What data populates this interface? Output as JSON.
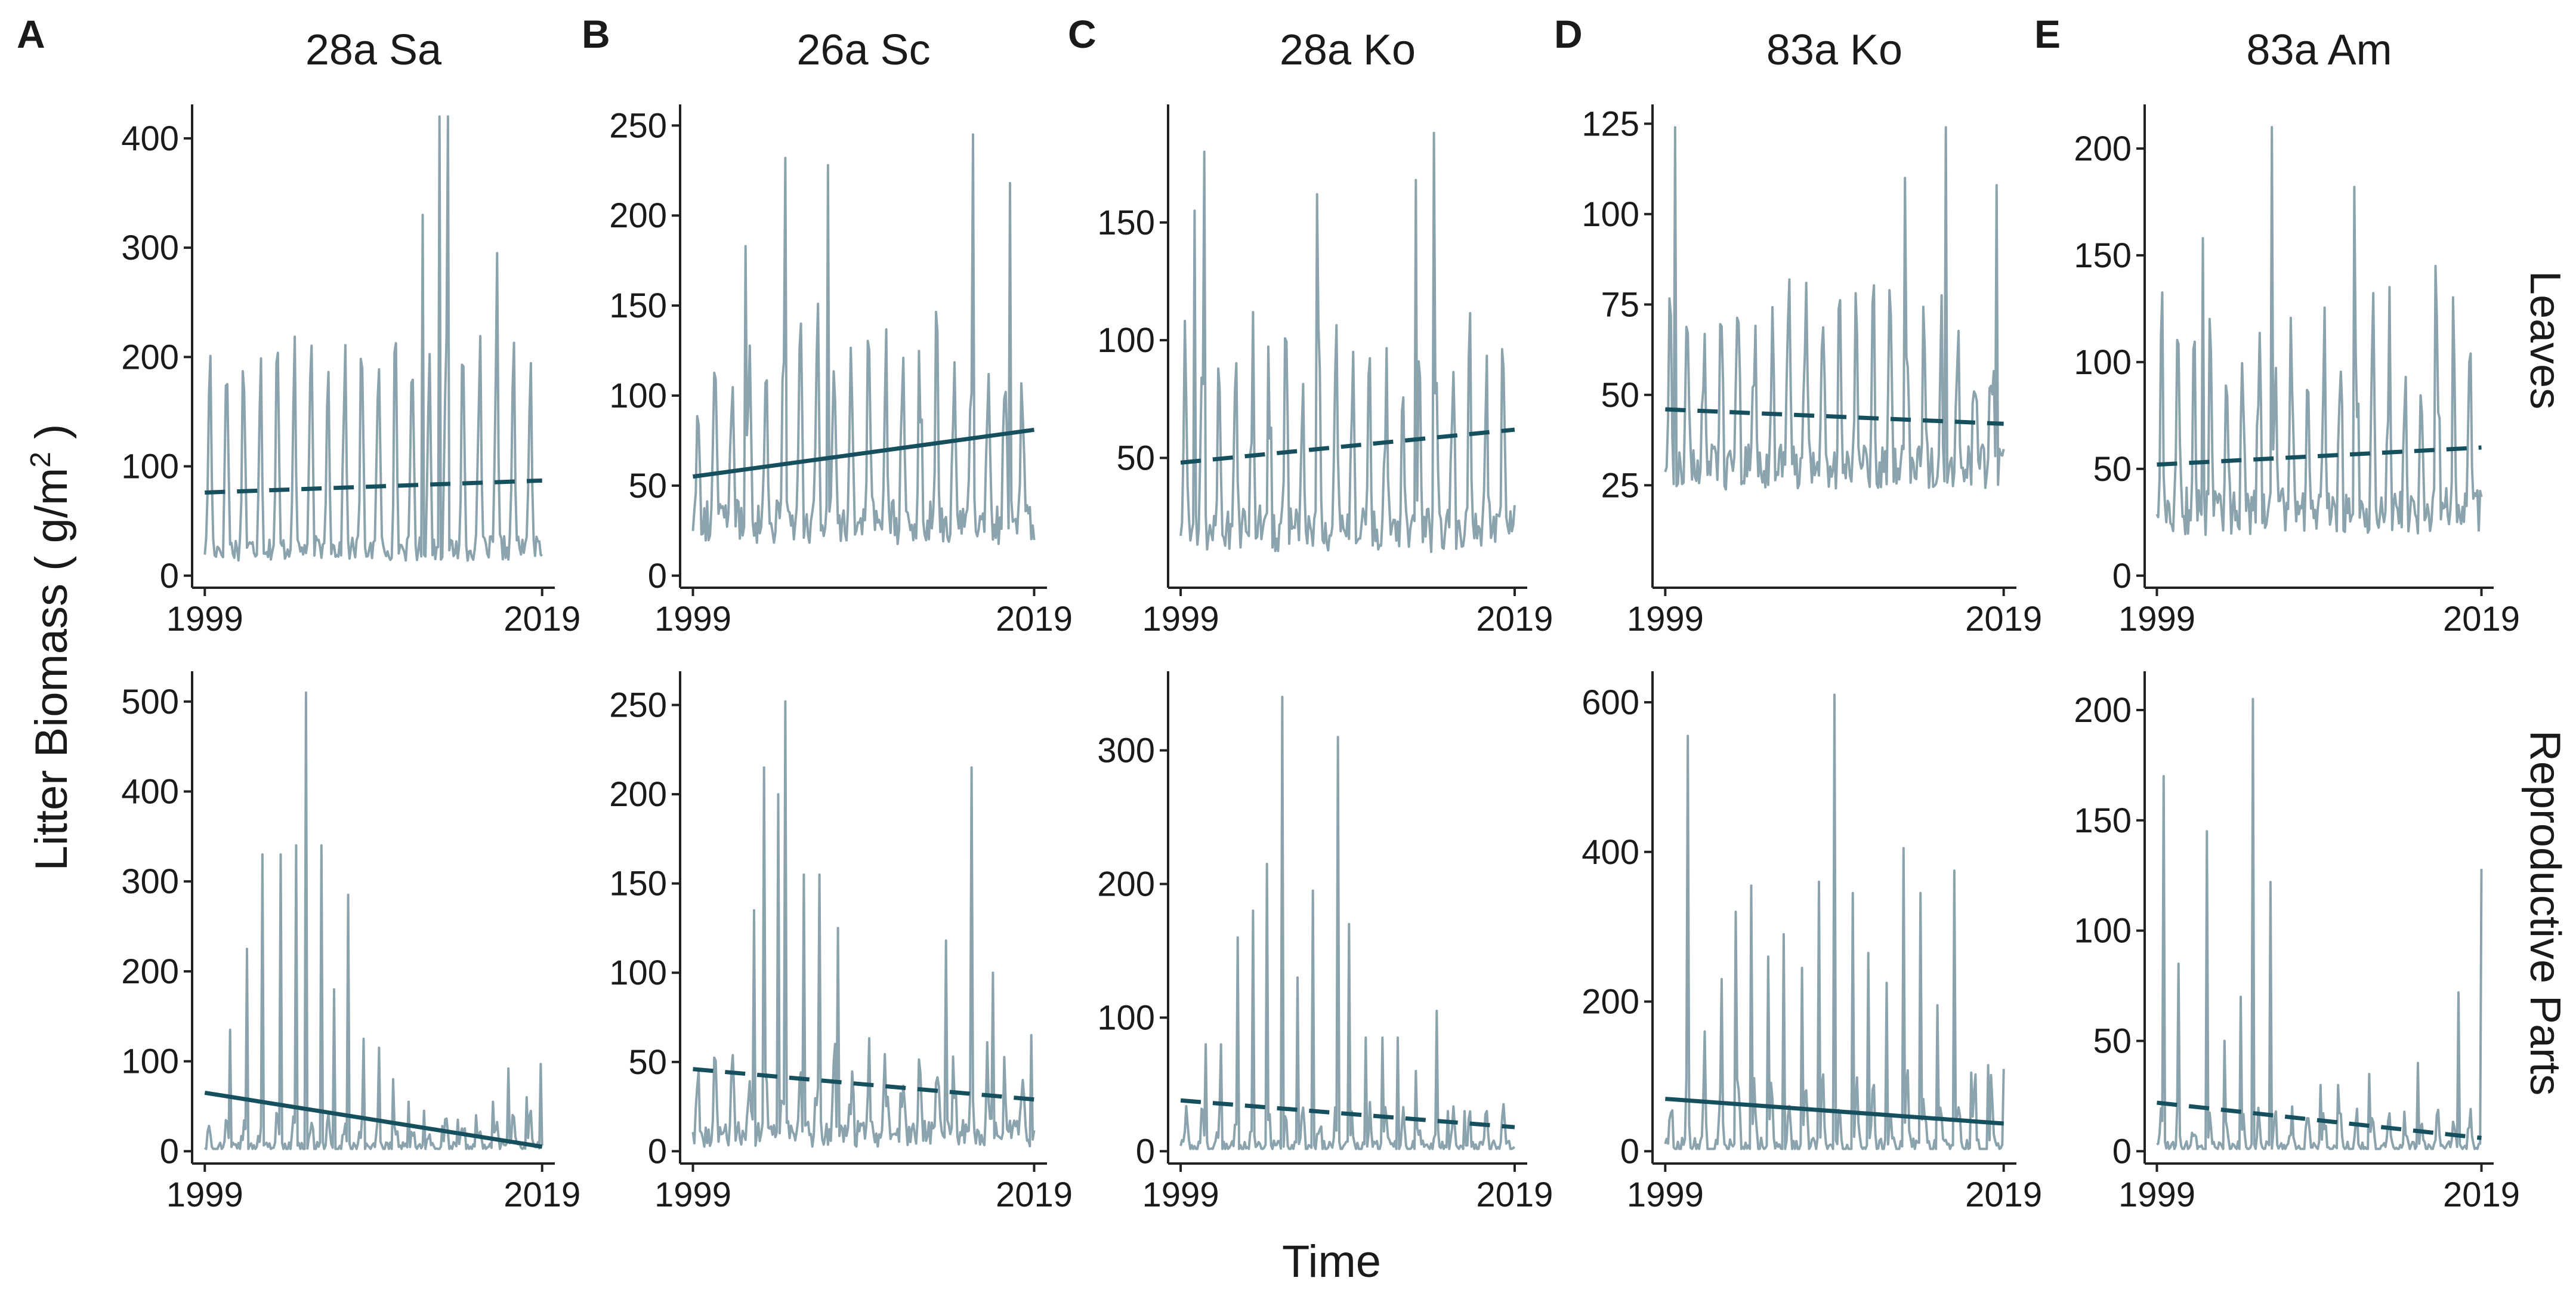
{
  "figure": {
    "ylabel_prefix": "Litter Biomass ( g/m",
    "ylabel_sup": "2",
    "ylabel_suffix": " )",
    "xlabel": "Time",
    "row_labels": [
      "Leaves",
      "Reproductive Parts"
    ],
    "colors": {
      "series": "#8aa3ad",
      "trend": "#16505f",
      "axis": "#222222"
    }
  },
  "chart_data": [
    {
      "type": "line",
      "panel": "A",
      "title": "28a Sa",
      "row": "Leaves",
      "xlim": [
        1999,
        2019
      ],
      "ylim": [
        0,
        420
      ],
      "yticks": [
        0,
        100,
        200,
        300,
        400
      ],
      "xticks": [
        1999,
        2019
      ],
      "base": 25,
      "peak": 200,
      "noise": 45,
      "spikes": [
        [
          2012.9,
          420
        ],
        [
          2013.4,
          420
        ],
        [
          2011.9,
          330
        ],
        [
          2016.3,
          295
        ]
      ],
      "trend": {
        "start": 76,
        "end": 87,
        "style": "dashed"
      }
    },
    {
      "type": "line",
      "panel": "B",
      "title": "26a Sc",
      "row": "Leaves",
      "xlim": [
        1999,
        2019
      ],
      "ylim": [
        0,
        255
      ],
      "yticks": [
        0,
        50,
        100,
        150,
        200,
        250
      ],
      "xticks": [
        1999,
        2019
      ],
      "base": 30,
      "peak": 125,
      "noise": 50,
      "spikes": [
        [
          2004.4,
          232
        ],
        [
          2015.4,
          245
        ],
        [
          2006.9,
          228
        ],
        [
          2017.6,
          218
        ],
        [
          2002.1,
          183
        ]
      ],
      "trend": {
        "start": 55,
        "end": 81,
        "style": "solid"
      }
    },
    {
      "type": "line",
      "panel": "C",
      "title": "28a Ko",
      "row": "Leaves",
      "xlim": [
        1999,
        2019
      ],
      "ylim": [
        0,
        195
      ],
      "yticks": [
        50,
        100,
        150
      ],
      "xticks": [
        1999,
        2019
      ],
      "base": 20,
      "peak": 90,
      "noise": 40,
      "spikes": [
        [
          2000.4,
          180
        ],
        [
          2014.2,
          188
        ],
        [
          2007.2,
          162
        ],
        [
          2013.1,
          168
        ],
        [
          1999.8,
          155
        ]
      ],
      "trend": {
        "start": 48,
        "end": 62,
        "style": "dashed"
      }
    },
    {
      "type": "line",
      "panel": "D",
      "title": "83a Ko",
      "row": "Leaves",
      "xlim": [
        1999,
        2019
      ],
      "ylim": [
        0,
        127
      ],
      "yticks": [
        25,
        50,
        75,
        100,
        125
      ],
      "xticks": [
        1999,
        2019
      ],
      "base": 30,
      "peak": 70,
      "noise": 25,
      "spikes": [
        [
          1999.6,
          124
        ],
        [
          2015.6,
          124
        ],
        [
          2018.6,
          108
        ],
        [
          2013.2,
          110
        ]
      ],
      "trend": {
        "start": 46,
        "end": 42,
        "style": "dashed"
      }
    },
    {
      "type": "line",
      "panel": "E",
      "title": "83a Am",
      "row": "Leaves",
      "xlim": [
        1999,
        2019
      ],
      "ylim": [
        0,
        215
      ],
      "yticks": [
        0,
        50,
        100,
        150,
        200
      ],
      "xticks": [
        1999,
        2019
      ],
      "base": 30,
      "peak": 110,
      "noise": 45,
      "spikes": [
        [
          2006.1,
          210
        ],
        [
          2011.2,
          182
        ],
        [
          2001.8,
          158
        ],
        [
          2016.2,
          145
        ]
      ],
      "trend": {
        "start": 52,
        "end": 60,
        "style": "dashed"
      }
    },
    {
      "type": "line",
      "panel": "A",
      "title": "28a Sa",
      "row": "Reproductive Parts",
      "xlim": [
        1999,
        2019
      ],
      "ylim": [
        0,
        520
      ],
      "yticks": [
        0,
        100,
        200,
        300,
        400,
        500
      ],
      "xticks": [
        1999,
        2019
      ],
      "base": 4,
      "peak": 30,
      "noise": 25,
      "spikes": [
        [
          2000.5,
          135
        ],
        [
          2001.5,
          225
        ],
        [
          2002.4,
          330
        ],
        [
          2003.5,
          330
        ],
        [
          2004.4,
          340
        ],
        [
          2005.0,
          510
        ],
        [
          2005.9,
          340
        ],
        [
          2006.7,
          180
        ],
        [
          2007.5,
          285
        ],
        [
          2008.4,
          125
        ],
        [
          2009.3,
          115
        ],
        [
          2010.2,
          80
        ],
        [
          2011.1,
          55
        ],
        [
          2012.0,
          45
        ],
        [
          2013.1,
          28
        ],
        [
          2014.0,
          35
        ],
        [
          2015.1,
          40
        ],
        [
          2016.1,
          55
        ],
        [
          2017.0,
          92
        ],
        [
          2018.1,
          60
        ],
        [
          2018.9,
          97
        ]
      ],
      "trend": {
        "start": 65,
        "end": 5,
        "style": "solid"
      }
    },
    {
      "type": "line",
      "panel": "B",
      "title": "26a Sc",
      "row": "Reproductive Parts",
      "xlim": [
        1999,
        2019
      ],
      "ylim": [
        0,
        262
      ],
      "yticks": [
        0,
        50,
        100,
        150,
        200,
        250
      ],
      "xticks": [
        1999,
        2019
      ],
      "base": 10,
      "peak": 45,
      "noise": 30,
      "spikes": [
        [
          2004.4,
          252
        ],
        [
          2003.2,
          215
        ],
        [
          2004.0,
          200
        ],
        [
          2002.6,
          135
        ],
        [
          2005.5,
          155
        ],
        [
          2006.4,
          155
        ],
        [
          2007.5,
          125
        ],
        [
          2015.3,
          215
        ],
        [
          2013.8,
          118
        ],
        [
          2016.6,
          100
        ],
        [
          2018.8,
          65
        ]
      ],
      "trend": {
        "start": 46,
        "end": 29,
        "style": "dashed"
      }
    },
    {
      "type": "line",
      "panel": "C",
      "title": "28a Ko",
      "row": "Reproductive Parts",
      "xlim": [
        1999,
        2019
      ],
      "ylim": [
        0,
        350
      ],
      "yticks": [
        0,
        100,
        200,
        300
      ],
      "xticks": [
        1999,
        2019
      ],
      "base": 3,
      "peak": 25,
      "noise": 20,
      "spikes": [
        [
          2000.5,
          80
        ],
        [
          2001.4,
          80
        ],
        [
          2002.4,
          160
        ],
        [
          2003.3,
          180
        ],
        [
          2004.2,
          215
        ],
        [
          2005.1,
          340
        ],
        [
          2006.0,
          130
        ],
        [
          2006.9,
          195
        ],
        [
          2008.4,
          310
        ],
        [
          2009.1,
          170
        ],
        [
          2010.1,
          85
        ],
        [
          2011.1,
          85
        ],
        [
          2012.0,
          85
        ],
        [
          2013.1,
          60
        ],
        [
          2014.3,
          105
        ],
        [
          2015.0,
          30
        ],
        [
          2016.0,
          30
        ],
        [
          2017.3,
          30
        ]
      ],
      "trend": {
        "start": 38,
        "end": 18,
        "style": "dashed"
      }
    },
    {
      "type": "line",
      "panel": "D",
      "title": "83a Ko",
      "row": "Reproductive Parts",
      "xlim": [
        1999,
        2019
      ],
      "ylim": [
        0,
        625
      ],
      "yticks": [
        0,
        200,
        400,
        600
      ],
      "xticks": [
        1999,
        2019
      ],
      "base": 6,
      "peak": 80,
      "noise": 50,
      "spikes": [
        [
          2000.3,
          555
        ],
        [
          2001.3,
          160
        ],
        [
          2002.3,
          230
        ],
        [
          2003.2,
          320
        ],
        [
          2004.1,
          355
        ],
        [
          2005.1,
          260
        ],
        [
          2006.0,
          290
        ],
        [
          2007.1,
          245
        ],
        [
          2008.1,
          360
        ],
        [
          2009.0,
          610
        ],
        [
          2010.1,
          345
        ],
        [
          2011.0,
          265
        ],
        [
          2012.1,
          225
        ],
        [
          2013.1,
          405
        ],
        [
          2014.1,
          345
        ],
        [
          2015.1,
          195
        ],
        [
          2016.1,
          375
        ],
        [
          2017.1,
          105
        ],
        [
          2018.1,
          115
        ],
        [
          2019.0,
          110
        ]
      ],
      "trend": {
        "start": 70,
        "end": 37,
        "style": "solid"
      }
    },
    {
      "type": "line",
      "panel": "E",
      "title": "83a Am",
      "row": "Reproductive Parts",
      "xlim": [
        1999,
        2019
      ],
      "ylim": [
        0,
        212
      ],
      "yticks": [
        0,
        50,
        100,
        150,
        200
      ],
      "xticks": [
        1999,
        2019
      ],
      "base": 2,
      "peak": 15,
      "noise": 10,
      "spikes": [
        [
          1999.4,
          170
        ],
        [
          2000.3,
          85
        ],
        [
          2002.1,
          145
        ],
        [
          2003.2,
          50
        ],
        [
          2004.2,
          70
        ],
        [
          2004.9,
          205
        ],
        [
          2006.0,
          122
        ],
        [
          2009.1,
          30
        ],
        [
          2010.2,
          30
        ],
        [
          2012.1,
          35
        ],
        [
          2015.1,
          40
        ],
        [
          2017.6,
          72
        ],
        [
          2019.0,
          128
        ]
      ],
      "trend": {
        "start": 22,
        "end": 6,
        "style": "dashed"
      }
    }
  ]
}
